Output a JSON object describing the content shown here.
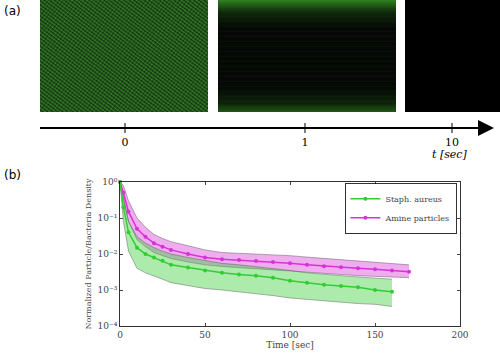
{
  "panel_a": {
    "label": "(a)",
    "times": [
      0,
      1,
      10
    ],
    "time_label": "t [sec]"
  },
  "chart_data": {
    "type": "line",
    "label": "(b)",
    "x_label": "Time [sec]",
    "y_label": "Normalized Particle/Bacteria Density",
    "log": "y",
    "grid": false,
    "legend": "upper right",
    "xlim": [
      0,
      200
    ],
    "xticks": [
      0,
      50,
      100,
      150,
      200
    ],
    "ylim": [
      0.0001,
      1
    ],
    "yticks": [
      {
        "value": 0.0001,
        "label": "10⁻⁴"
      },
      {
        "value": 0.001,
        "label": "10⁻³"
      },
      {
        "value": 0.01,
        "label": "10⁻²"
      },
      {
        "value": 0.1,
        "label": "10⁻¹"
      },
      {
        "value": 1,
        "label": "10⁰"
      }
    ],
    "x": [
      0,
      2,
      5,
      10,
      15,
      20,
      25,
      30,
      40,
      50,
      60,
      70,
      80,
      90,
      100,
      110,
      120,
      130,
      140,
      150,
      160,
      170
    ],
    "series": [
      {
        "name": "Amine particles",
        "color": "#d633d6",
        "marker": "circle",
        "line_style": "solid",
        "values": [
          1,
          0.5,
          0.15,
          0.05,
          0.03,
          0.02,
          0.016,
          0.013,
          0.01,
          0.008,
          0.0072,
          0.0068,
          0.0064,
          0.006,
          0.0055,
          0.005,
          0.0046,
          0.0043,
          0.004,
          0.0038,
          0.0035,
          0.0032
        ],
        "lower": [
          1,
          0.3,
          0.08,
          0.025,
          0.016,
          0.011,
          0.009,
          0.0075,
          0.006,
          0.005,
          0.0045,
          0.0042,
          0.004,
          0.0037,
          0.0034,
          0.0031,
          0.0029,
          0.0027,
          0.0025,
          0.0024,
          0.0023,
          0.0022
        ],
        "upper": [
          1,
          0.8,
          0.3,
          0.1,
          0.055,
          0.035,
          0.027,
          0.022,
          0.017,
          0.013,
          0.011,
          0.0105,
          0.01,
          0.0095,
          0.009,
          0.0082,
          0.0075,
          0.007,
          0.0065,
          0.006,
          0.0055,
          0.005
        ]
      },
      {
        "name": "Staph. aureus",
        "color": "#33cc33",
        "marker": "circle",
        "line_style": "solid",
        "values": [
          1,
          0.2,
          0.04,
          0.015,
          0.01,
          0.008,
          0.0065,
          0.005,
          0.0042,
          0.0035,
          0.003,
          0.0027,
          0.0025,
          0.0022,
          0.0018,
          0.0016,
          0.0014,
          0.0013,
          0.0012,
          0.001,
          0.0009,
          null
        ],
        "lower": [
          1,
          0.08,
          0.012,
          0.004,
          0.003,
          0.0025,
          0.002,
          0.0016,
          0.0013,
          0.0011,
          0.001,
          0.0009,
          0.0008,
          0.0007,
          0.0006,
          0.00055,
          0.0005,
          0.00045,
          0.00042,
          0.0004,
          0.00035,
          null
        ],
        "upper": [
          1,
          0.4,
          0.08,
          0.03,
          0.02,
          0.015,
          0.012,
          0.01,
          0.008,
          0.0065,
          0.0055,
          0.005,
          0.0045,
          0.004,
          0.0035,
          0.003,
          0.0027,
          0.0025,
          0.0023,
          0.0021,
          0.002,
          null
        ]
      }
    ]
  }
}
